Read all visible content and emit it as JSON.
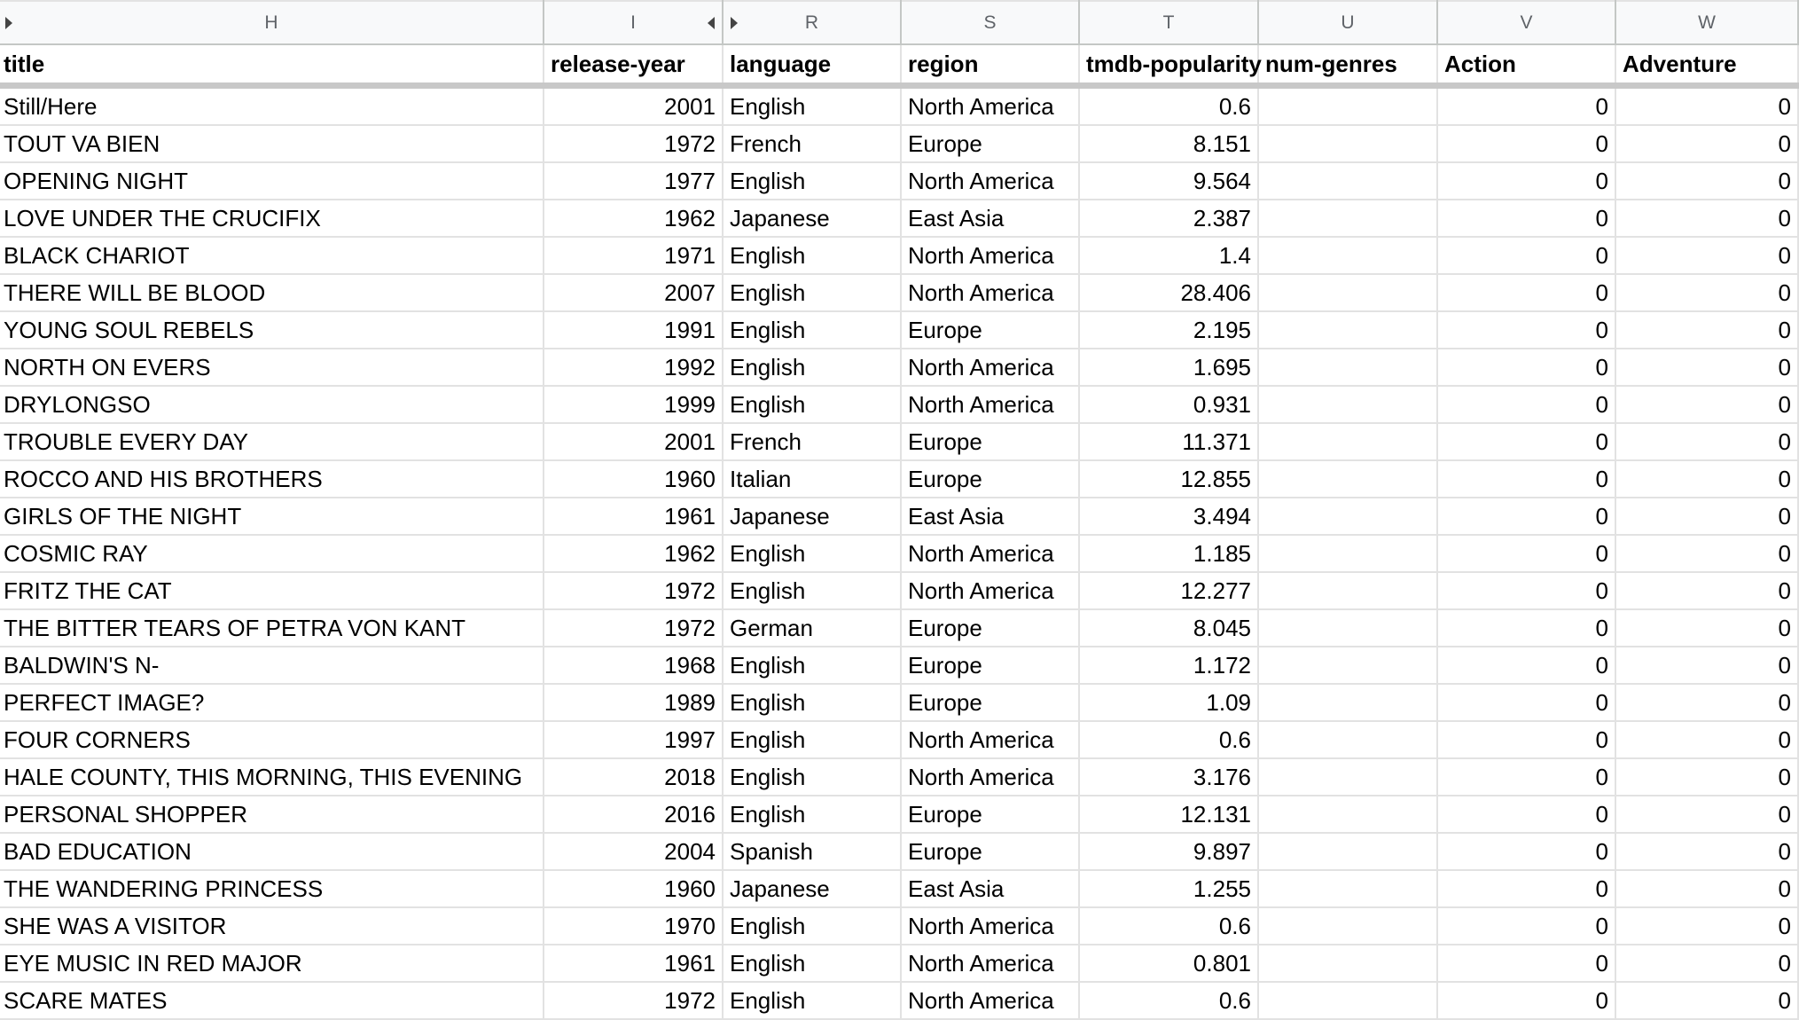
{
  "column_letters": [
    "H",
    "I",
    "R",
    "S",
    "T",
    "U",
    "V",
    "W"
  ],
  "headers": [
    "title",
    "release-year",
    "language",
    "region",
    "tmdb-popularity",
    "num-genres",
    "Action",
    "Adventure"
  ],
  "rows": [
    [
      "Still/Here",
      "2001",
      "English",
      "North America",
      "0.6",
      "",
      "0",
      "0"
    ],
    [
      "TOUT VA BIEN",
      "1972",
      "French",
      "Europe",
      "8.151",
      "",
      "0",
      "0"
    ],
    [
      "OPENING NIGHT",
      "1977",
      "English",
      "North America",
      "9.564",
      "",
      "0",
      "0"
    ],
    [
      "LOVE UNDER THE CRUCIFIX",
      "1962",
      "Japanese",
      "East Asia",
      "2.387",
      "",
      "0",
      "0"
    ],
    [
      "BLACK CHARIOT",
      "1971",
      "English",
      "North America",
      "1.4",
      "",
      "0",
      "0"
    ],
    [
      "THERE WILL BE BLOOD",
      "2007",
      "English",
      "North America",
      "28.406",
      "",
      "0",
      "0"
    ],
    [
      "YOUNG SOUL REBELS",
      "1991",
      "English",
      "Europe",
      "2.195",
      "",
      "0",
      "0"
    ],
    [
      "NORTH ON EVERS",
      "1992",
      "English",
      "North America",
      "1.695",
      "",
      "0",
      "0"
    ],
    [
      "DRYLONGSO",
      "1999",
      "English",
      "North America",
      "0.931",
      "",
      "0",
      "0"
    ],
    [
      "TROUBLE EVERY DAY",
      "2001",
      "French",
      "Europe",
      "11.371",
      "",
      "0",
      "0"
    ],
    [
      "ROCCO AND HIS BROTHERS",
      "1960",
      "Italian",
      "Europe",
      "12.855",
      "",
      "0",
      "0"
    ],
    [
      "GIRLS OF THE NIGHT",
      "1961",
      "Japanese",
      "East Asia",
      "3.494",
      "",
      "0",
      "0"
    ],
    [
      "COSMIC RAY",
      "1962",
      "English",
      "North America",
      "1.185",
      "",
      "0",
      "0"
    ],
    [
      "FRITZ THE CAT",
      "1972",
      "English",
      "North America",
      "12.277",
      "",
      "0",
      "0"
    ],
    [
      "THE BITTER TEARS OF PETRA VON KANT",
      "1972",
      "German",
      "Europe",
      "8.045",
      "",
      "0",
      "0"
    ],
    [
      "BALDWIN'S N-",
      "1968",
      "English",
      "Europe",
      "1.172",
      "",
      "0",
      "0"
    ],
    [
      "PERFECT IMAGE?",
      "1989",
      "English",
      "Europe",
      "1.09",
      "",
      "0",
      "0"
    ],
    [
      "FOUR CORNERS",
      "1997",
      "English",
      "North America",
      "0.6",
      "",
      "0",
      "0"
    ],
    [
      "HALE COUNTY, THIS MORNING, THIS EVENING",
      "2018",
      "English",
      "North America",
      "3.176",
      "",
      "0",
      "0"
    ],
    [
      "PERSONAL SHOPPER",
      "2016",
      "English",
      "Europe",
      "12.131",
      "",
      "0",
      "0"
    ],
    [
      "BAD EDUCATION",
      "2004",
      "Spanish",
      "Europe",
      "9.897",
      "",
      "0",
      "0"
    ],
    [
      "THE WANDERING PRINCESS",
      "1960",
      "Japanese",
      "East Asia",
      "1.255",
      "",
      "0",
      "0"
    ],
    [
      "SHE WAS A VISITOR",
      "1970",
      "English",
      "North America",
      "0.6",
      "",
      "0",
      "0"
    ],
    [
      "EYE MUSIC IN RED MAJOR",
      "1961",
      "English",
      "North America",
      "0.801",
      "",
      "0",
      "0"
    ],
    [
      "SCARE MATES",
      "1972",
      "English",
      "North America",
      "0.6",
      "",
      "0",
      "0"
    ]
  ],
  "colors": {
    "grid": "#e2e2e2",
    "header_bg": "#f8f9fa",
    "freeze_bar": "#c8c8c8"
  },
  "icons": [
    "expand-hidden-columns-icon",
    "collapse-columns-icon"
  ]
}
